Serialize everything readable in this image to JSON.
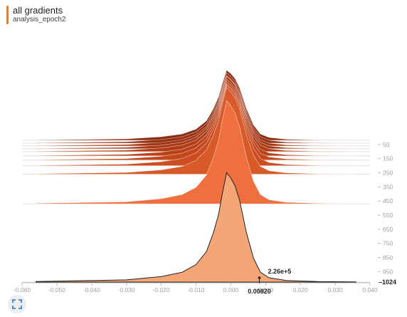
{
  "header": {
    "title": "all gradients",
    "subtitle": "analysis_epoch2",
    "accent_color": "#f57c00"
  },
  "chart_data": {
    "type": "area",
    "mode": "offset",
    "xlim": [
      -0.06,
      0.04
    ],
    "x_ticks": [
      -0.06,
      -0.05,
      -0.04,
      -0.03,
      -0.02,
      -0.01,
      0.0,
      0.01,
      0.02,
      0.03,
      0.04
    ],
    "x_tick_labels": [
      "-0.060",
      "-0.050",
      "-0.040",
      "-0.030",
      "-0.020",
      "-0.010",
      "0.000",
      "0.010",
      "0.020",
      "0.030",
      "0.040"
    ],
    "step_ticks": [
      50,
      150,
      250,
      350,
      450,
      550,
      650,
      750,
      850,
      950
    ],
    "step_range": [
      0,
      1024
    ],
    "last_step": 1024,
    "shape_x": [
      -0.056,
      -0.03,
      -0.02,
      -0.014,
      -0.01,
      -0.007,
      -0.005,
      -0.0035,
      -0.0025,
      -0.0012,
      0.0,
      0.0012,
      0.0025,
      0.0045,
      0.0065,
      0.0085,
      0.011,
      0.016,
      0.025,
      0.036
    ],
    "shape_y": [
      0.005,
      0.02,
      0.05,
      0.09,
      0.16,
      0.28,
      0.45,
      0.62,
      0.8,
      1.0,
      0.95,
      0.88,
      0.75,
      0.45,
      0.22,
      0.09,
      0.04,
      0.015,
      0.005,
      0.002
    ],
    "histograms": [
      {
        "step": 20,
        "scale": 0.34,
        "color": "#8d2e12"
      },
      {
        "step": 40,
        "scale": 0.34,
        "color": "#962f12"
      },
      {
        "step": 60,
        "scale": 0.34,
        "color": "#a03413"
      },
      {
        "step": 80,
        "scale": 0.35,
        "color": "#a83714"
      },
      {
        "step": 100,
        "scale": 0.35,
        "color": "#b23c16"
      },
      {
        "step": 130,
        "scale": 0.36,
        "color": "#bb4118"
      },
      {
        "step": 160,
        "scale": 0.37,
        "color": "#c4471b"
      },
      {
        "step": 200,
        "scale": 0.39,
        "color": "#cc4e20"
      },
      {
        "step": 260,
        "scale": 0.42,
        "color": "#d85a28"
      },
      {
        "step": 470,
        "scale": 0.5,
        "color": "#ef6f3f"
      },
      {
        "step": 1024,
        "scale": 0.53,
        "color": "#f4a677"
      }
    ],
    "hover": {
      "x": 0.0082,
      "x_label": "0.00820",
      "value_label": "2.26e+5",
      "step": 1024,
      "step_label": "1024"
    }
  },
  "controls": {
    "fullscreen_icon": "fullscreen-icon"
  }
}
